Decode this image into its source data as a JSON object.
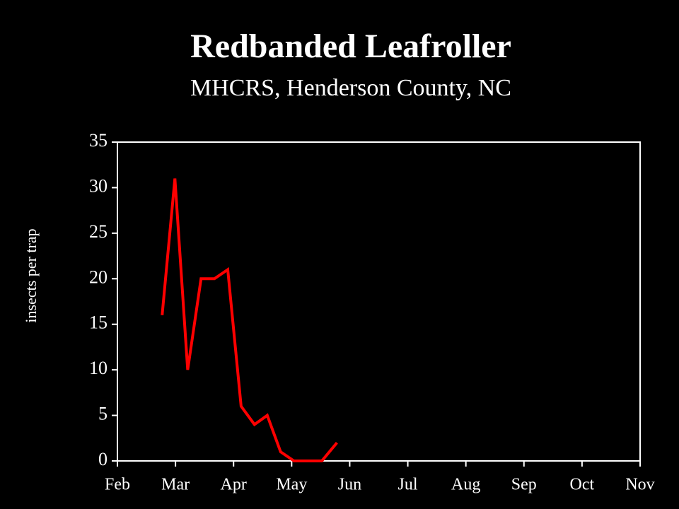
{
  "chart_data": {
    "type": "line",
    "title": "Redbanded Leafroller",
    "subtitle": "MHCRS, Henderson County, NC",
    "y_label": "insects per trap",
    "x": [
      0.77,
      0.99,
      1.21,
      1.44,
      1.67,
      1.9,
      2.13,
      2.36,
      2.58,
      2.81,
      3.04,
      3.29,
      3.52,
      3.78
    ],
    "series": [
      {
        "name": "Redbanded Leafroller",
        "color": "#ff0000",
        "values": [
          16,
          31,
          10,
          20,
          20,
          21,
          6,
          4,
          5,
          1,
          0,
          0,
          0,
          2
        ]
      }
    ],
    "xlim": [
      0,
      9
    ],
    "xticks": [
      {
        "value": 0,
        "label": "Feb"
      },
      {
        "value": 1,
        "label": "Mar"
      },
      {
        "value": 2,
        "label": "Apr"
      },
      {
        "value": 3,
        "label": "May"
      },
      {
        "value": 4,
        "label": "Jun"
      },
      {
        "value": 5,
        "label": "Jul"
      },
      {
        "value": 6,
        "label": "Aug"
      },
      {
        "value": 7,
        "label": "Sep"
      },
      {
        "value": 8,
        "label": "Oct"
      },
      {
        "value": 9,
        "label": "Nov"
      }
    ],
    "ylim": [
      0,
      35
    ],
    "yticks": [
      0,
      5,
      10,
      15,
      20,
      25,
      30,
      35
    ],
    "grid": false
  }
}
